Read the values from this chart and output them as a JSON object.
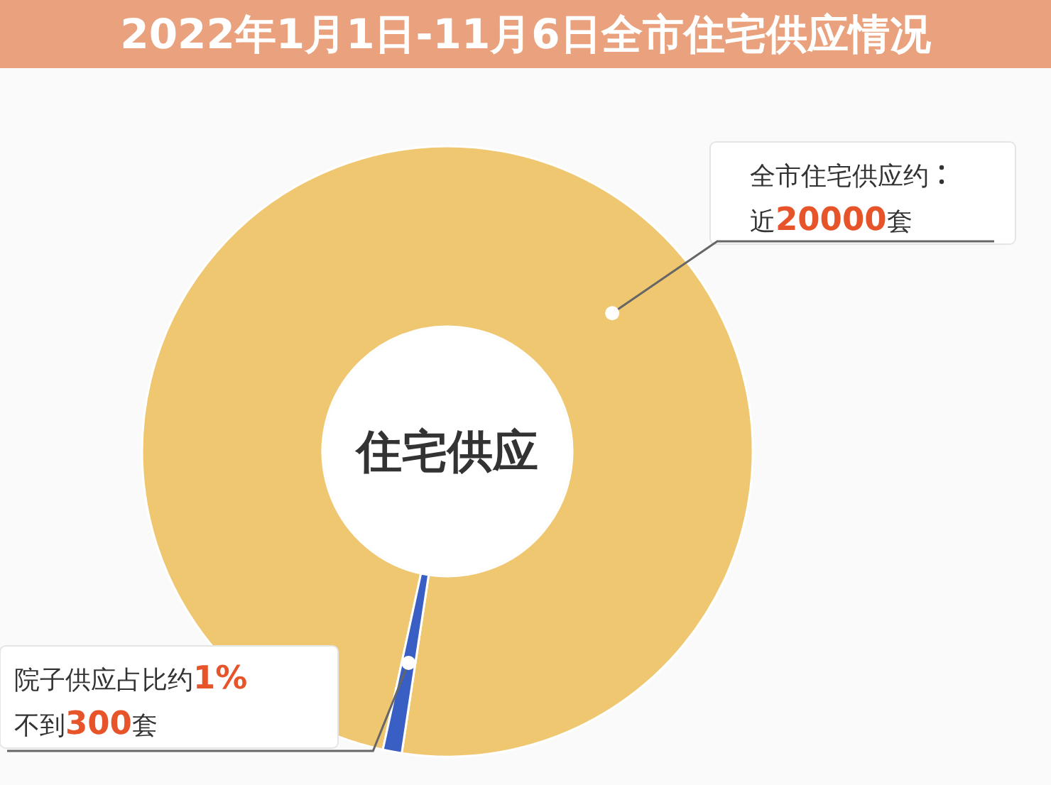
{
  "chart_data": {
    "type": "donut",
    "title": "2022年1月1日-11月6日全市住宅供应情况",
    "categories": [
      "全市住宅供应约",
      "院子供应占比约1%"
    ],
    "values": [
      99,
      1
    ],
    "value_labels": [
      "近20000套",
      "不到300套"
    ],
    "colors": [
      "#f0c771",
      "#3a5fc4"
    ],
    "annotations": [
      "住宅供应"
    ]
  }
}
